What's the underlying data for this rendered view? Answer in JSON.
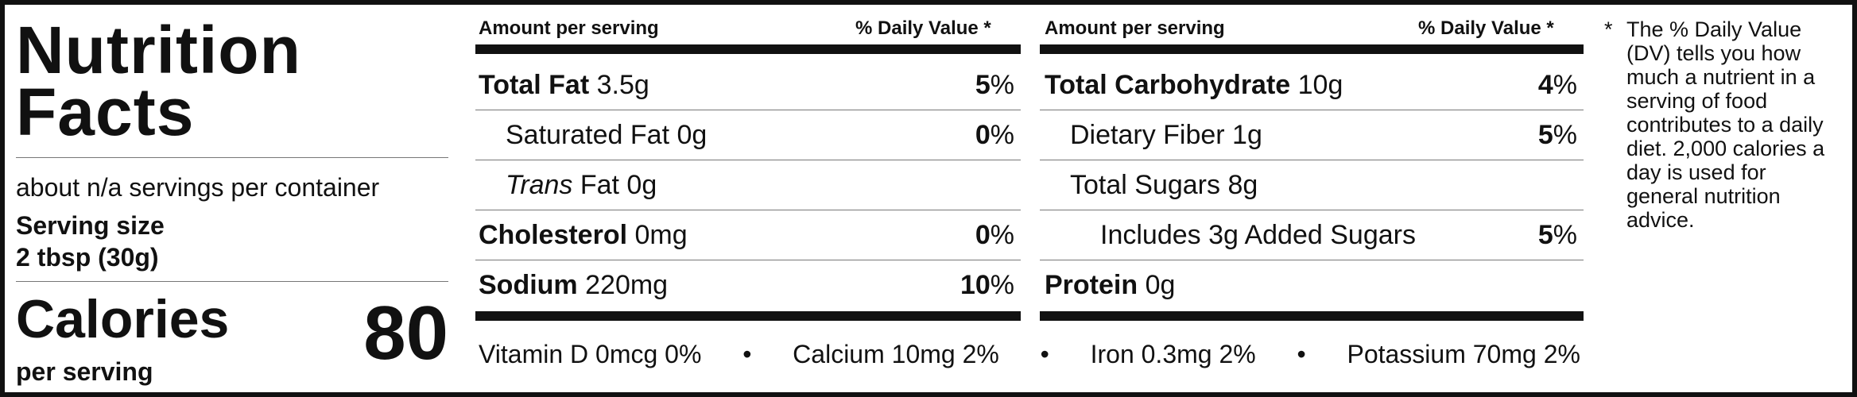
{
  "title_line1": "Nutrition",
  "title_line2": "Facts",
  "servings_per_container": "about n/a servings per container",
  "serving_size_label": "Serving size",
  "serving_size_value": "2 tbsp (30g)",
  "calories_label": "Calories",
  "calories_sub": "per serving",
  "calories_value": "80",
  "left_col": {
    "amount_header": "Amount per serving",
    "dv_header": "% Daily Value *",
    "total_fat": {
      "name": "Total Fat",
      "amount": "3.5g",
      "pct": "5",
      "sym": "%"
    },
    "sat_fat": {
      "name": "Saturated Fat 0g",
      "pct": "0",
      "sym": "%"
    },
    "trans_fat": {
      "name_italic": "Trans",
      "name_rest": "Fat 0g"
    },
    "cholesterol": {
      "name": "Cholesterol",
      "amount": "0mg",
      "pct": "0",
      "sym": "%"
    },
    "sodium": {
      "name": "Sodium",
      "amount": "220mg",
      "pct": "10",
      "sym": "%"
    }
  },
  "right_col": {
    "amount_header": "Amount per serving",
    "dv_header": "% Daily Value *",
    "total_carb": {
      "name": "Total Carbohydrate",
      "amount": "10g",
      "pct": "4",
      "sym": "%"
    },
    "fiber": {
      "name": "Dietary Fiber 1g",
      "pct": "5",
      "sym": "%"
    },
    "sugars": {
      "name": "Total Sugars 8g"
    },
    "added_sugars": {
      "name": "Includes 3g Added Sugars",
      "pct": "5",
      "sym": "%"
    },
    "protein": {
      "name": "Protein",
      "amount": "0g"
    }
  },
  "vitamins": {
    "vit_d": "Vitamin D 0mcg 0%",
    "calcium": "Calcium 10mg 2%",
    "iron": "Iron 0.3mg 2%",
    "potassium": "Potassium 70mg 2%",
    "sep": "•"
  },
  "footnote": {
    "star": "*",
    "text": "The % Daily Value (DV) tells you how much a nutrient in a serving of food contributes to a daily diet. 2,000 calories a day is used for general nutrition advice."
  }
}
